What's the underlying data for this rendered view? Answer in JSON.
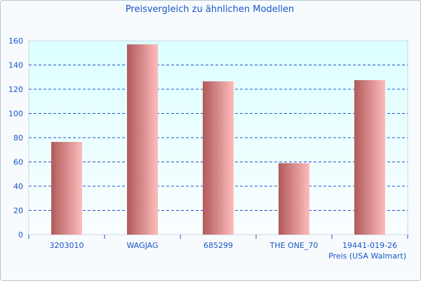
{
  "chart_data": {
    "type": "bar",
    "title": "Preisvergleich zu ähnlichen Modellen",
    "xlabel": "Preis (USA Walmart)",
    "ylabel": "",
    "categories": [
      "3203010",
      "WAGJAG",
      "685299",
      "THE ONE_70",
      "19441-019-26"
    ],
    "values": [
      76.5,
      157,
      126.5,
      59,
      127.5
    ],
    "ylim": [
      0,
      160
    ],
    "yticks": [
      0,
      20,
      40,
      60,
      80,
      100,
      120,
      140,
      160
    ],
    "grid": true,
    "colors": {
      "bar_dark": "#b05a5a",
      "bar_light": "#ffbcbc",
      "grid": "#2255cc",
      "text": "#1a55c8",
      "plot_top": "#dcffff",
      "plot_bottom": "#fafeff"
    }
  }
}
